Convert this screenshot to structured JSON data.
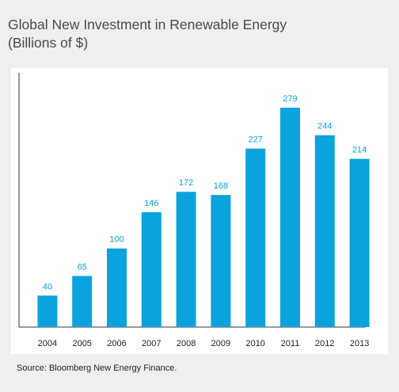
{
  "title_line1": "Global New Investment in Renewable Energy",
  "title_line2": "(Billions of $)",
  "source": "Source: Bloomberg New Energy Finance.",
  "colors": {
    "bar": "#0aa3dd",
    "label": "#0aa3dd",
    "axis": "#333333",
    "panel": "#ffffff",
    "background": "#efefef"
  },
  "chart_data": {
    "type": "bar",
    "title": "Global New Investment in Renewable Energy (Billions of $)",
    "categories": [
      "2004",
      "2005",
      "2006",
      "2007",
      "2008",
      "2009",
      "2010",
      "2011",
      "2012",
      "2013"
    ],
    "values": [
      40,
      65,
      100,
      146,
      172,
      168,
      227,
      279,
      244,
      214
    ],
    "xlabel": "",
    "ylabel": "",
    "ylim": [
      0,
      320
    ],
    "grid": false,
    "data_labels": true
  }
}
